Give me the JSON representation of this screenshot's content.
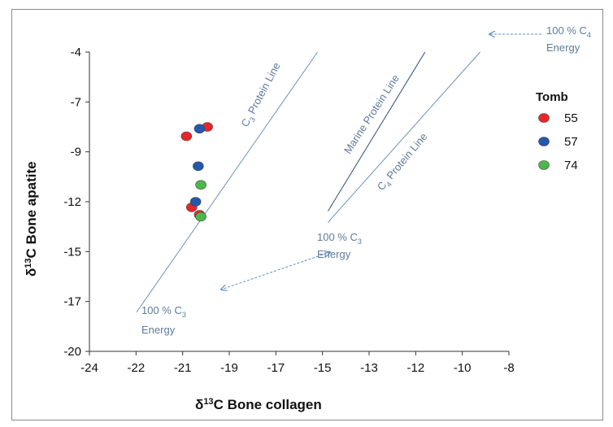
{
  "chart_data": {
    "type": "scatter",
    "xlabel": "δ13C Bone collagen",
    "ylabel": "δ13C Bone apatite",
    "xlim": [
      -24,
      -8
    ],
    "ylim": [
      -20,
      -4
    ],
    "x_ticks": [
      "-24",
      "-22",
      "-21",
      "-19",
      "-17",
      "-15",
      "-13",
      "-12",
      "-10",
      "-8"
    ],
    "y_ticks": [
      "-4",
      "-7",
      "-9",
      "-12",
      "-15",
      "-17",
      "-20"
    ],
    "legend": {
      "title": "Tomb",
      "position": "right"
    },
    "series": [
      {
        "name": "55",
        "color": "#e8262a",
        "points": [
          [
            -20.3,
            -8.5
          ],
          [
            -19.5,
            -8.0
          ],
          [
            -20.1,
            -12.3
          ],
          [
            -19.8,
            -12.7
          ]
        ]
      },
      {
        "name": "57",
        "color": "#2457b0",
        "points": [
          [
            -19.8,
            -8.1
          ],
          [
            -19.85,
            -10.1
          ],
          [
            -19.95,
            -12.0
          ]
        ]
      },
      {
        "name": "74",
        "color": "#4cb848",
        "points": [
          [
            -19.75,
            -11.1
          ],
          [
            -19.75,
            -12.8
          ]
        ]
      }
    ],
    "lines": [
      {
        "label": "C3 Protein Line",
        "color": "#6c93b8",
        "from": [
          -22.2,
          -17.9
        ],
        "to": [
          -15.3,
          -4.0
        ]
      },
      {
        "label": "Marine Protein Line",
        "color": "#2e4f78",
        "from": [
          -14.9,
          -12.5
        ],
        "to": [
          -11.2,
          -4.0
        ]
      },
      {
        "label": "C4 Protein Line",
        "color": "#6c93b8",
        "from": [
          -14.9,
          -13.1
        ],
        "to": [
          -9.1,
          -4.0
        ]
      }
    ],
    "annotations": [
      {
        "id": "c4-energy",
        "line1": "100 % C4",
        "line2": "Energy"
      },
      {
        "id": "c3-energy-mid",
        "line1": "100 % C3",
        "line2": "Energy"
      },
      {
        "id": "c3-energy-low",
        "line1": "100 % C3",
        "line2": "Energy"
      }
    ]
  }
}
